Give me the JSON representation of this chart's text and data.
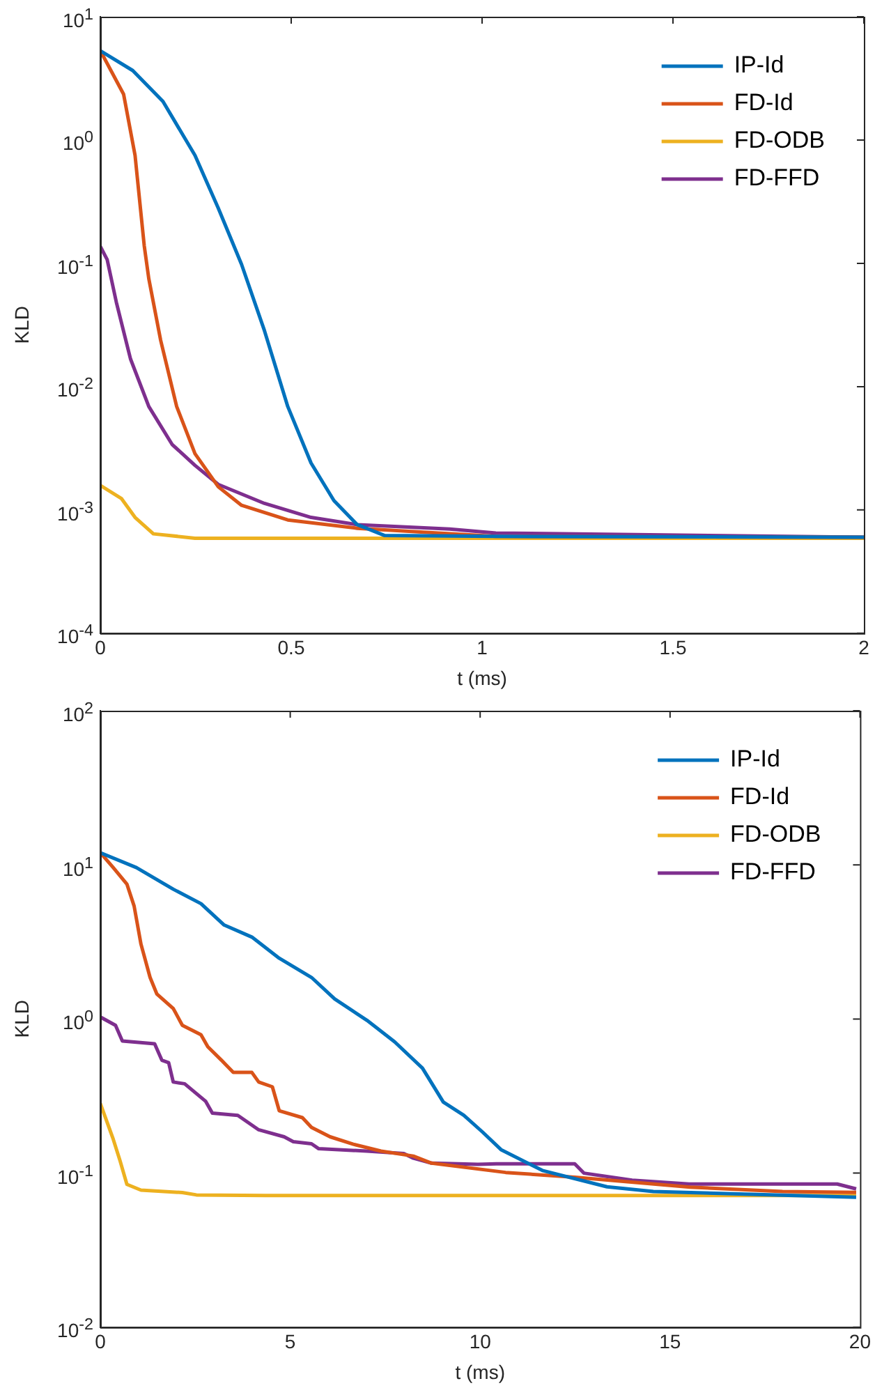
{
  "chart_data": [
    {
      "type": "line",
      "xlabel": "t (ms)",
      "ylabel": "KLD",
      "log": "y",
      "xlim": [
        0,
        2
      ],
      "xticks": [
        0,
        0.5,
        1,
        1.5,
        2
      ],
      "ylim": [
        0.0001,
        10
      ],
      "yticks": [
        {
          "value": 0.0001,
          "label": "10$^{-4}$"
        },
        {
          "value": 0.001,
          "label": "10$^{-3}$"
        },
        {
          "value": 0.01,
          "label": "10$^{-2}$"
        },
        {
          "value": 0.1,
          "label": "10$^{-1}$"
        },
        {
          "value": 1,
          "label": "10$^{0}$"
        },
        {
          "value": 10,
          "label": "10$^{1}$"
        }
      ],
      "legend": "top right",
      "series": [
        {
          "name": "IP-Id",
          "color": "#0072bd",
          "x": [
            0,
            0.085,
            0.164,
            0.248,
            0.309,
            0.37,
            0.43,
            0.491,
            0.552,
            0.612,
            0.673,
            0.745,
            1.036,
            2
          ],
          "values": [
            5.3,
            3.66,
            2.06,
            0.75,
            0.28,
            0.098,
            0.0284,
            0.0069,
            0.0024,
            0.00119,
            0.00076,
            0.00062,
            0.00061,
            0.0006
          ]
        },
        {
          "name": "FD-Id",
          "color": "#d95319",
          "x": [
            0,
            0.061,
            0.091,
            0.115,
            0.127,
            0.158,
            0.2,
            0.248,
            0.309,
            0.37,
            0.491,
            0.673,
            1.036,
            2
          ],
          "values": [
            5.3,
            2.35,
            0.75,
            0.139,
            0.075,
            0.0238,
            0.0069,
            0.00286,
            0.00154,
            0.00109,
            0.00083,
            0.00071,
            0.00061,
            0.0006
          ]
        },
        {
          "name": "FD-ODB",
          "color": "#edb120",
          "x": [
            0,
            0.055,
            0.091,
            0.139,
            0.248,
            2
          ],
          "values": [
            0.00158,
            0.00124,
            0.00087,
            0.00064,
            0.00059,
            0.00059
          ]
        },
        {
          "name": "FD-FFD",
          "color": "#7e2f8e",
          "x": [
            0,
            0.018,
            0.042,
            0.079,
            0.127,
            0.188,
            0.248,
            0.309,
            0.43,
            0.552,
            0.673,
            0.915,
            1.036,
            2
          ],
          "values": [
            0.137,
            0.107,
            0.0483,
            0.0168,
            0.0069,
            0.0034,
            0.0023,
            0.00161,
            0.00113,
            0.00087,
            0.00076,
            0.0007,
            0.00065,
            0.0006
          ]
        }
      ]
    },
    {
      "type": "line",
      "xlabel": "t (ms)",
      "ylabel": "KLD",
      "log": "y",
      "xlim": [
        0,
        20
      ],
      "xticks": [
        0,
        5,
        10,
        15,
        20
      ],
      "ylim": [
        0.01,
        100
      ],
      "yticks": [
        {
          "value": 0.01,
          "label": "10$^{-2}$"
        },
        {
          "value": 0.1,
          "label": "10$^{-1}$"
        },
        {
          "value": 1,
          "label": "10$^{0}$"
        },
        {
          "value": 10,
          "label": "10$^{1}$"
        },
        {
          "value": 100,
          "label": "10$^{2}$"
        }
      ],
      "legend": "top right",
      "series": [
        {
          "name": "IP-Id",
          "color": "#0072bd",
          "x": [
            0,
            0.95,
            1.92,
            2.65,
            3.26,
            3.99,
            4.71,
            5.56,
            6.17,
            7.02,
            7.75,
            8.48,
            9.03,
            9.57,
            10.06,
            10.55,
            11.64,
            13.34,
            14.56,
            19.9
          ],
          "values": [
            12,
            9.6,
            6.95,
            5.6,
            4.07,
            3.4,
            2.48,
            1.86,
            1.35,
            0.98,
            0.71,
            0.48,
            0.289,
            0.237,
            0.185,
            0.142,
            0.104,
            0.0815,
            0.0759,
            0.0697
          ]
        },
        {
          "name": "FD-Id",
          "color": "#d95319",
          "x": [
            0,
            0.34,
            0.7,
            0.89,
            1.07,
            1.31,
            1.49,
            1.92,
            2.16,
            2.65,
            2.83,
            3.19,
            3.5,
            3.99,
            4.17,
            4.53,
            4.71,
            5.32,
            5.56,
            6.05,
            6.66,
            7.39,
            8.24,
            8.72,
            10.67,
            12.49,
            15.53,
            17.96,
            19.9
          ],
          "values": [
            12,
            9.6,
            7.5,
            5.4,
            3.06,
            1.86,
            1.45,
            1.17,
            0.91,
            0.79,
            0.66,
            0.54,
            0.45,
            0.45,
            0.39,
            0.363,
            0.254,
            0.229,
            0.198,
            0.172,
            0.154,
            0.139,
            0.129,
            0.116,
            0.101,
            0.094,
            0.081,
            0.076,
            0.075
          ]
        },
        {
          "name": "FD-ODB",
          "color": "#edb120",
          "x": [
            0,
            0.34,
            0.52,
            0.7,
            1.07,
            2.16,
            2.53,
            4.35,
            19.9
          ],
          "values": [
            0.283,
            0.166,
            0.12,
            0.0845,
            0.0776,
            0.0748,
            0.0722,
            0.0715,
            0.0715
          ]
        },
        {
          "name": "FD-FFD",
          "color": "#7e2f8e",
          "x": [
            0,
            0.4,
            0.58,
            1.43,
            1.62,
            1.8,
            1.92,
            2.22,
            2.77,
            2.95,
            3.62,
            4.17,
            4.84,
            5.08,
            5.56,
            5.75,
            7.02,
            7.99,
            8.24,
            8.72,
            9.94,
            10.43,
            12.49,
            12.73,
            14,
            15.5,
            19.4,
            19.9
          ],
          "values": [
            1.03,
            0.91,
            0.72,
            0.69,
            0.54,
            0.52,
            0.39,
            0.38,
            0.293,
            0.245,
            0.237,
            0.191,
            0.172,
            0.16,
            0.155,
            0.144,
            0.139,
            0.134,
            0.125,
            0.116,
            0.114,
            0.115,
            0.115,
            0.1,
            0.09,
            0.085,
            0.085,
            0.079
          ]
        }
      ]
    }
  ]
}
